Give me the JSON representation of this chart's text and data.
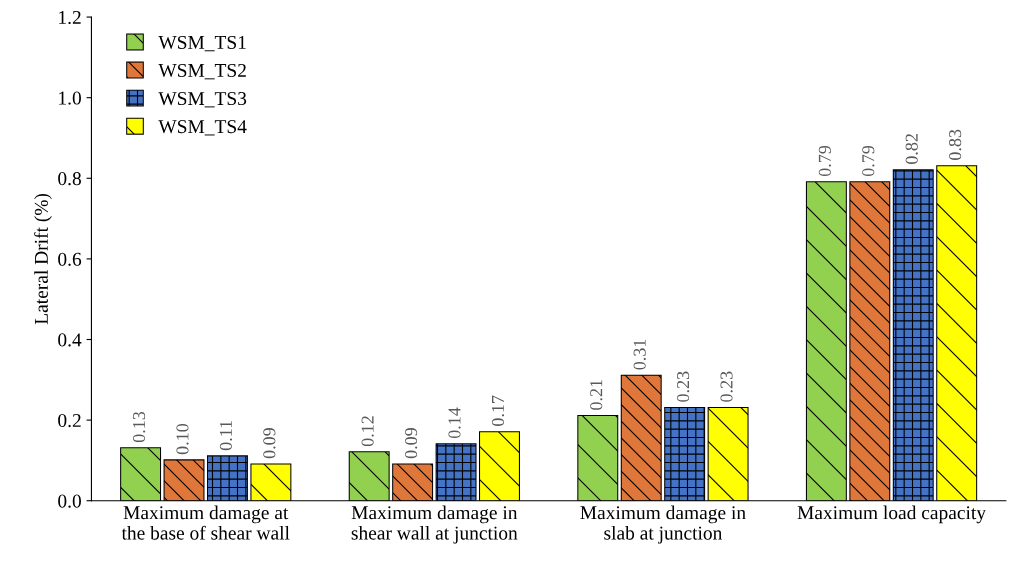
{
  "chart_data": {
    "type": "bar",
    "ylabel": "Lateral Drift (%)",
    "categories": [
      "Maximum damage at\nthe base of shear wall",
      "Maximum damage in\nshear wall at junction",
      "Maximum damage in\nslab at junction",
      "Maximum load capacity"
    ],
    "series": [
      {
        "name": "WSM_TS1",
        "color": "#92d050",
        "values": [
          0.13,
          0.12,
          0.21,
          0.79
        ],
        "value_labels": [
          "0.13",
          "0.12",
          "0.21",
          "0.79"
        ]
      },
      {
        "name": "WSM_TS2",
        "color": "#e0773a",
        "values": [
          0.1,
          0.09,
          0.31,
          0.79
        ],
        "value_labels": [
          "0.10",
          "0.09",
          "0.31",
          "0.79"
        ]
      },
      {
        "name": "WSM_TS3",
        "color": "#4472c4",
        "values": [
          0.11,
          0.14,
          0.23,
          0.82
        ],
        "value_labels": [
          "0.11",
          "0.14",
          "0.23",
          "0.82"
        ]
      },
      {
        "name": "WSM_TS4",
        "color": "#ffff00",
        "values": [
          0.09,
          0.17,
          0.23,
          0.83
        ],
        "value_labels": [
          "0.09",
          "0.17",
          "0.23",
          "0.83"
        ]
      }
    ],
    "ylim": [
      0,
      1.2
    ],
    "yticks": [
      {
        "value": 0,
        "label": "0.0"
      },
      {
        "value": 0.2,
        "label": "0.2"
      },
      {
        "value": 0.4,
        "label": "0.4"
      },
      {
        "value": 0.6,
        "label": "0.6"
      },
      {
        "value": 0.8,
        "label": "0.8"
      },
      {
        "value": 1.0,
        "label": "1.0"
      },
      {
        "value": 1.2,
        "label": "1.2"
      }
    ],
    "grid": false,
    "legend": "top left"
  }
}
